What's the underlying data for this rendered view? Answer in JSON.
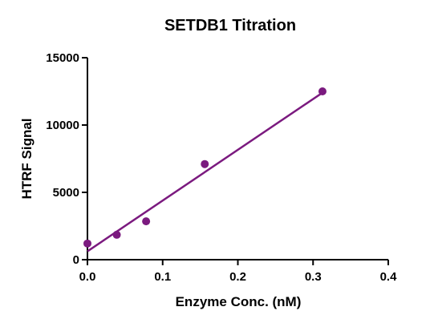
{
  "chart_data": {
    "type": "scatter",
    "title": "SETDB1 Titration",
    "xlabel": "Enzyme Conc. (nM)",
    "ylabel": "HTRF Signal",
    "xlim": [
      0.0,
      0.4
    ],
    "ylim": [
      0,
      15000
    ],
    "xticks": [
      0.0,
      0.1,
      0.2,
      0.3,
      0.4
    ],
    "xtick_labels": [
      "0.0",
      "0.1",
      "0.2",
      "0.3",
      "0.4"
    ],
    "yticks": [
      0,
      5000,
      10000,
      15000
    ],
    "ytick_labels": [
      "0",
      "5000",
      "10000",
      "15000"
    ],
    "grid": false,
    "legend": "none",
    "series": [
      {
        "x": [
          0.0,
          0.039,
          0.078,
          0.156,
          0.3125
        ],
        "y": [
          1200,
          1850,
          2850,
          7100,
          12500
        ],
        "color": "#7b1a7f"
      }
    ],
    "fit_line": {
      "type": "linear",
      "x": [
        0.0,
        0.3125
      ],
      "y": [
        620,
        12400
      ],
      "color": "#7b1a7f"
    }
  }
}
